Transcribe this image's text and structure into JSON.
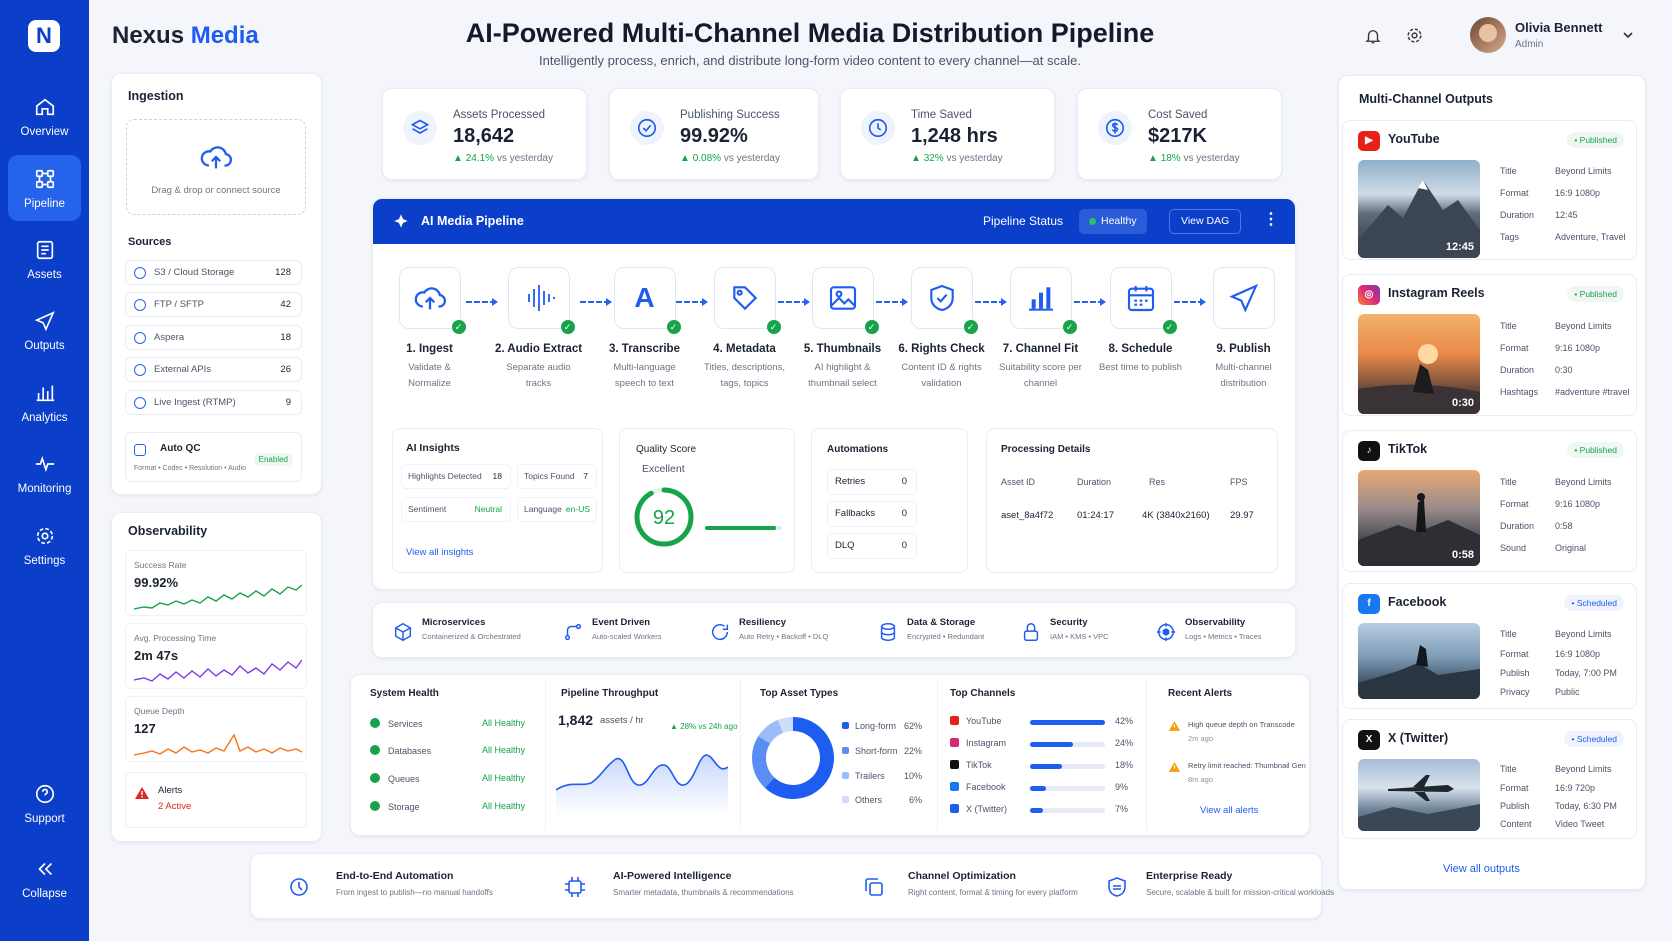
{
  "app": {
    "logo_letter": "N",
    "brand_a": "Nexus",
    "brand_b": "Media"
  },
  "header": {
    "title": "AI-Powered Multi-Channel Media Distribution Pipeline",
    "subtitle": "Intelligently process, enrich, and distribute long-form video content to every channel—at scale."
  },
  "user": {
    "name": "Olivia Bennett",
    "role": "Admin"
  },
  "nav": {
    "items": [
      "Overview",
      "Pipeline",
      "Assets",
      "Outputs",
      "Analytics",
      "Monitoring",
      "Settings"
    ],
    "support": "Support",
    "collapse": "Collapse",
    "active": "Pipeline"
  },
  "ingestion": {
    "title": "Ingestion",
    "drop": "Drag & drop or connect source",
    "sources_title": "Sources",
    "sources": [
      {
        "name": "S3 / Cloud Storage",
        "count": "128"
      },
      {
        "name": "FTP / SFTP",
        "count": "42"
      },
      {
        "name": "Aspera",
        "count": "18"
      },
      {
        "name": "External APIs",
        "count": "26"
      },
      {
        "name": "Live Ingest (RTMP)",
        "count": "9"
      }
    ],
    "autoqc": "Auto QC",
    "autoqc_desc": "Format • Codec • Resolution • Audio",
    "autoqc_badge": "Enabled"
  },
  "observability": {
    "title": "Observability",
    "success_label": "Success Rate",
    "success_value": "99.92%",
    "proc_label": "Avg. Processing Time",
    "proc_value": "2m 47s",
    "queue_label": "Queue Depth",
    "queue_value": "127",
    "alerts_label": "Alerts",
    "alerts_value": "2 Active"
  },
  "kpis": [
    {
      "label": "Assets Processed",
      "value": "18,642",
      "delta": "24.1%",
      "suffix": "vs yesterday"
    },
    {
      "label": "Publishing Success",
      "value": "99.92%",
      "delta": "0.08%",
      "suffix": "vs yesterday"
    },
    {
      "label": "Time Saved",
      "value": "1,248 hrs",
      "delta": "32%",
      "suffix": "vs yesterday"
    },
    {
      "label": "Cost Saved",
      "value": "$217K",
      "delta": "18%",
      "suffix": "vs yesterday"
    }
  ],
  "pipeline": {
    "title": "AI Media Pipeline",
    "status_label": "Pipeline Status",
    "status": "Healthy",
    "view_dag": "View DAG",
    "steps": [
      {
        "title": "1. Ingest",
        "desc": "Validate & Normalize"
      },
      {
        "title": "2. Audio Extract",
        "desc": "Separate audio tracks"
      },
      {
        "title": "3. Transcribe",
        "desc": "Multi-language speech to text"
      },
      {
        "title": "4. Metadata",
        "desc": "Titles, descriptions, tags, topics"
      },
      {
        "title": "5. Thumbnails",
        "desc": "AI highlight & thumbnail select"
      },
      {
        "title": "6. Rights Check",
        "desc": "Content ID & rights validation"
      },
      {
        "title": "7. Channel Fit",
        "desc": "Suitability score per channel"
      },
      {
        "title": "8. Schedule",
        "desc": "Best time to publish"
      },
      {
        "title": "9. Publish",
        "desc": "Multi-channel distribution"
      }
    ]
  },
  "insights": {
    "title": "AI Insights",
    "highlights_label": "Highlights Detected",
    "highlights": "18",
    "topics_label": "Topics Found",
    "topics": "7",
    "sentiment_label": "Sentiment",
    "sentiment": "Neutral",
    "language_label": "Language",
    "language": "en-US",
    "link": "View all insights"
  },
  "quality": {
    "title": "Quality Score",
    "grade": "Excellent",
    "score": "92",
    "score_num": 92
  },
  "automations": {
    "title": "Automations",
    "rows": [
      {
        "label": "Retries",
        "value": "0"
      },
      {
        "label": "Fallbacks",
        "value": "0"
      },
      {
        "label": "DLQ",
        "value": "0"
      }
    ]
  },
  "processing": {
    "title": "Processing Details",
    "headers": [
      "Asset ID",
      "Duration",
      "Res",
      "FPS"
    ],
    "row": [
      "aset_8a4f72",
      "01:24:17",
      "4K (3840x2160)",
      "29.97"
    ]
  },
  "features": [
    {
      "title": "Microservices",
      "desc": "Containerized & Orchestrated"
    },
    {
      "title": "Event Driven",
      "desc": "Auto-scaled Workers"
    },
    {
      "title": "Resiliency",
      "desc": "Auto Retry • Backoff • DLQ"
    },
    {
      "title": "Data & Storage",
      "desc": "Encrypted • Redundant"
    },
    {
      "title": "Security",
      "desc": "IAM • KMS • VPC"
    },
    {
      "title": "Observability",
      "desc": "Logs • Metrics • Traces"
    }
  ],
  "health": {
    "title": "System Health",
    "rows": [
      {
        "label": "Services",
        "status": "All Healthy"
      },
      {
        "label": "Databases",
        "status": "All Healthy"
      },
      {
        "label": "Queues",
        "status": "All Healthy"
      },
      {
        "label": "Storage",
        "status": "All Healthy"
      }
    ]
  },
  "throughput": {
    "title": "Pipeline Throughput",
    "value": "1,842",
    "unit": "assets / hr",
    "delta": "28% vs 24h ago"
  },
  "asset_types": {
    "title": "Top Asset Types",
    "items": [
      {
        "label": "Long-form",
        "pct": "62%",
        "value": 62,
        "color": "#1f5cf0"
      },
      {
        "label": "Short-form",
        "pct": "22%",
        "value": 22,
        "color": "#5b8ef5"
      },
      {
        "label": "Trailers",
        "pct": "10%",
        "value": 10,
        "color": "#9bbcf8"
      },
      {
        "label": "Others",
        "pct": "6%",
        "value": 6,
        "color": "#cfdcfb"
      }
    ]
  },
  "channels": {
    "title": "Top Channels",
    "items": [
      {
        "label": "YouTube",
        "pct": "42%",
        "value": 42,
        "color": "#e62117"
      },
      {
        "label": "Instagram",
        "pct": "24%",
        "value": 24,
        "color": "#d62976"
      },
      {
        "label": "TikTok",
        "pct": "18%",
        "value": 18,
        "color": "#111111"
      },
      {
        "label": "Facebook",
        "pct": "9%",
        "value": 9,
        "color": "#1877f2"
      },
      {
        "label": "X (Twitter)",
        "pct": "7%",
        "value": 7,
        "color": "#1f5cf0"
      }
    ]
  },
  "alerts": {
    "title": "Recent Alerts",
    "items": [
      {
        "text": "High queue depth on Transcode",
        "time": "2m ago"
      },
      {
        "text": "Retry limit reached: Thumbnail Gen",
        "time": "8m ago"
      }
    ],
    "link": "View all alerts"
  },
  "outputs": {
    "title": "Multi-Channel Outputs",
    "link": "View all outputs",
    "items": [
      {
        "name": "YouTube",
        "badge": "Published",
        "duration": "12:45",
        "rows": [
          [
            "Title",
            "Beyond Limits"
          ],
          [
            "Format",
            "16:9 1080p"
          ],
          [
            "Duration",
            "12:45"
          ],
          [
            "Tags",
            "Adventure, Travel"
          ]
        ]
      },
      {
        "name": "Instagram Reels",
        "badge": "Published",
        "duration": "0:30",
        "rows": [
          [
            "Title",
            "Beyond Limits"
          ],
          [
            "Format",
            "9:16 1080p"
          ],
          [
            "Duration",
            "0:30"
          ],
          [
            "Hashtags",
            "#adventure #travel"
          ]
        ]
      },
      {
        "name": "TikTok",
        "badge": "Published",
        "duration": "0:58",
        "rows": [
          [
            "Title",
            "Beyond Limits"
          ],
          [
            "Format",
            "9:16 1080p"
          ],
          [
            "Duration",
            "0:58"
          ],
          [
            "Sound",
            "Original"
          ]
        ]
      },
      {
        "name": "Facebook",
        "badge": "Scheduled",
        "duration": "",
        "rows": [
          [
            "Title",
            "Beyond Limits"
          ],
          [
            "Format",
            "16:9 1080p"
          ],
          [
            "Publish",
            "Today, 7:00 PM"
          ],
          [
            "Privacy",
            "Public"
          ]
        ]
      },
      {
        "name": "X (Twitter)",
        "badge": "Scheduled",
        "duration": "",
        "rows": [
          [
            "Title",
            "Beyond Limits"
          ],
          [
            "Format",
            "16:9 720p"
          ],
          [
            "Publish",
            "Today, 6:30 PM"
          ],
          [
            "Content",
            "Video Tweet"
          ]
        ]
      }
    ]
  },
  "bottom": [
    {
      "title": "End-to-End Automation",
      "desc": "From ingest to publish—no manual handoffs"
    },
    {
      "title": "AI-Powered Intelligence",
      "desc": "Smarter metadata, thumbnails & recommendations"
    },
    {
      "title": "Channel Optimization",
      "desc": "Right content, format & timing for every platform"
    },
    {
      "title": "Enterprise Ready",
      "desc": "Secure, scalable & built for mission-critical workloads"
    }
  ]
}
